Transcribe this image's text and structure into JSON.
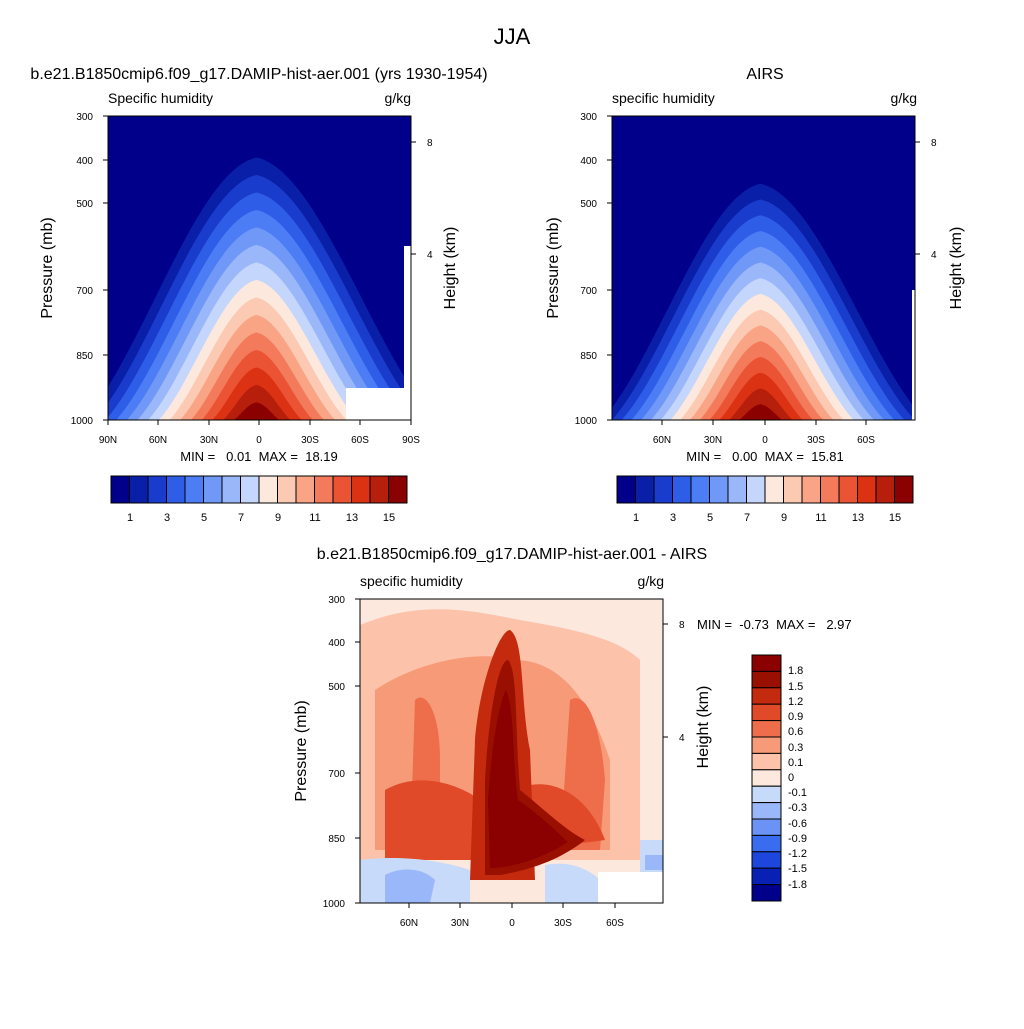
{
  "figure_title": "JJA",
  "colors": {
    "seq": [
      "#00008b",
      "#0a1fa8",
      "#1a3ccc",
      "#2e5ee8",
      "#4d7df4",
      "#7099f7",
      "#9ab7f9",
      "#c4d6fb",
      "#fde8de",
      "#fcc9b3",
      "#f8a485",
      "#f37b5c",
      "#ea5434",
      "#dc3214",
      "#b51f0c",
      "#8b0000"
    ],
    "div": [
      "#00008b",
      "#0920b5",
      "#1d46dc",
      "#3a6cf0",
      "#6a93f5",
      "#9ab7f9",
      "#c7daf9",
      "#fde8de",
      "#fcc3aa",
      "#f79a78",
      "#ee6e4c",
      "#e04a28",
      "#c32a0e",
      "#9a1000",
      "#8b0000"
    ]
  },
  "chart_data": [
    {
      "type": "contour",
      "title": "b.e21.B1850cmip6.f09_g17.DAMIP-hist-aer.001 (yrs 1930-1954)",
      "left_label": "Specific humidity",
      "units": "g/kg",
      "ylabel": "Pressure (mb)",
      "ylabel_right": "Height (km)",
      "y_ticks": [
        "300",
        "400",
        "500",
        "700",
        "850",
        "1000"
      ],
      "y_right_ticks": [
        "8",
        "4"
      ],
      "x_ticks": [
        "90N",
        "60N",
        "30N",
        "0",
        "30S",
        "60S",
        "90S"
      ],
      "stats": "MIN =   0.01  MAX =  18.19",
      "colorbar_labels": [
        "1",
        "3",
        "5",
        "7",
        "9",
        "11",
        "13",
        "15"
      ]
    },
    {
      "type": "contour",
      "title": "AIRS",
      "left_label": "specific humidity",
      "units": "g/kg",
      "ylabel": "Pressure (mb)",
      "ylabel_right": "Height (km)",
      "y_ticks": [
        "300",
        "400",
        "500",
        "700",
        "850",
        "1000"
      ],
      "y_right_ticks": [
        "8",
        "4"
      ],
      "x_ticks": [
        "60N",
        "30N",
        "0",
        "30S",
        "60S"
      ],
      "stats": "MIN =   0.00  MAX =  15.81",
      "colorbar_labels": [
        "1",
        "3",
        "5",
        "7",
        "9",
        "11",
        "13",
        "15"
      ]
    },
    {
      "type": "contour",
      "title": "b.e21.B1850cmip6.f09_g17.DAMIP-hist-aer.001 - AIRS",
      "left_label": "specific humidity",
      "units": "g/kg",
      "ylabel": "Pressure (mb)",
      "ylabel_right": "Height (km)",
      "y_ticks": [
        "300",
        "400",
        "500",
        "700",
        "850",
        "1000"
      ],
      "y_right_ticks": [
        "8",
        "4"
      ],
      "x_ticks": [
        "60N",
        "30N",
        "0",
        "30S",
        "60S"
      ],
      "stats": "MIN =  -0.73  MAX =   2.97",
      "colorbar_labels": [
        "1.8",
        "1.5",
        "1.2",
        "0.9",
        "0.6",
        "0.3",
        "0.1",
        "0",
        "-0.1",
        "-0.3",
        "-0.6",
        "-0.9",
        "-1.2",
        "-1.5",
        "-1.8"
      ]
    }
  ]
}
